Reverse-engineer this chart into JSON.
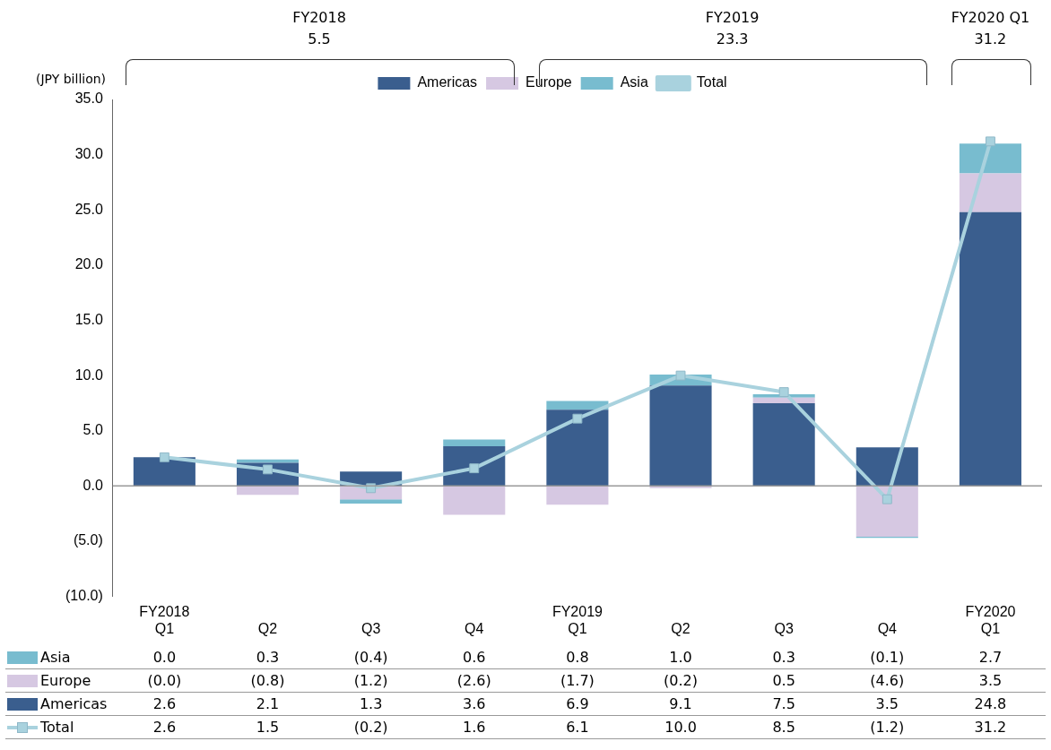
{
  "chart_data": {
    "type": "bar",
    "ylabel": "(JPY billion)",
    "categories": [
      "Q1",
      "Q2",
      "Q3",
      "Q4",
      "Q1",
      "Q2",
      "Q3",
      "Q4",
      "Q1"
    ],
    "series": [
      {
        "name": "Americas",
        "color": "#3a5e8e",
        "values": [
          2.6,
          2.1,
          1.3,
          3.6,
          6.9,
          9.1,
          7.5,
          3.5,
          24.8
        ],
        "value_labels": [
          "2.6",
          "2.1",
          "1.3",
          "3.6",
          "6.9",
          "9.1",
          "7.5",
          "3.5",
          "24.8"
        ]
      },
      {
        "name": "Europe",
        "color": "#d6c8e2",
        "values": [
          0.0,
          -0.8,
          -1.2,
          -2.6,
          -1.7,
          -0.2,
          0.5,
          -4.6,
          3.5
        ],
        "value_labels": [
          "(0.0)",
          "(0.8)",
          "(1.2)",
          "(2.6)",
          "(1.7)",
          "(0.2)",
          "0.5",
          "(4.6)",
          "3.5"
        ]
      },
      {
        "name": "Asia",
        "color": "#78bccf",
        "values": [
          0.0,
          0.3,
          -0.4,
          0.6,
          0.8,
          1.0,
          0.3,
          -0.1,
          2.7
        ],
        "value_labels": [
          "0.0",
          "0.3",
          "(0.4)",
          "0.6",
          "0.8",
          "1.0",
          "0.3",
          "(0.1)",
          "2.7"
        ]
      },
      {
        "name": "Total",
        "type": "line",
        "color": "#a9d2de",
        "values": [
          2.6,
          1.5,
          -0.2,
          1.6,
          6.1,
          10.0,
          8.5,
          -1.2,
          31.2
        ],
        "value_labels": [
          "2.6",
          "1.5",
          "(0.2)",
          "1.6",
          "6.1",
          "10.0",
          "8.5",
          "(1.2)",
          "31.2"
        ]
      }
    ],
    "stacked": true,
    "marker": "square",
    "line_style": "solid",
    "legend": "top",
    "ylim": [
      -10,
      35
    ],
    "yticks": [
      {
        "value": -10,
        "label": "(10.0)"
      },
      {
        "value": -5,
        "label": "(5.0)"
      },
      {
        "value": 0,
        "label": "0.0"
      },
      {
        "value": 5,
        "label": "5.0"
      },
      {
        "value": 10,
        "label": "10.0"
      },
      {
        "value": 15,
        "label": "15.0"
      },
      {
        "value": 20,
        "label": "20.0"
      },
      {
        "value": 25,
        "label": "25.0"
      },
      {
        "value": 30,
        "label": "30.0"
      },
      {
        "value": 35,
        "label": "35.0"
      }
    ],
    "ref_lines": [
      {
        "axis": "y",
        "value": 0,
        "color": "#999999"
      }
    ],
    "annotations": [
      "FY2018",
      "FY2019",
      "FY2020",
      "FY2018",
      "5.5",
      "FY2019",
      "23.3",
      "FY2020 Q1",
      "31.2"
    ]
  }
}
